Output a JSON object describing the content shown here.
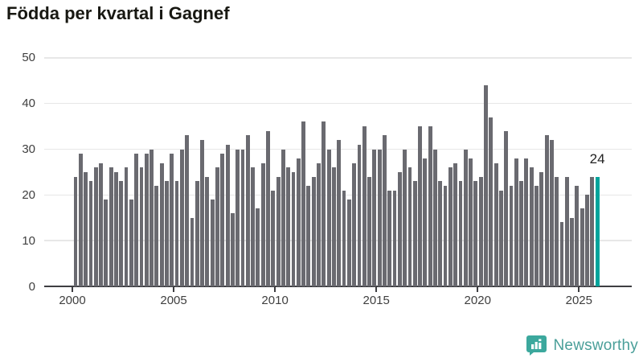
{
  "title": "Födda per kvartal i Gagnef",
  "chart_data": {
    "type": "bar",
    "title": "Födda per kvartal i Gagnef",
    "xlabel": "",
    "ylabel": "",
    "ylim": [
      0,
      50
    ],
    "y_ticks": [
      0,
      10,
      20,
      30,
      40,
      50
    ],
    "x_tick_labels": [
      "2000",
      "2005",
      "2010",
      "2015",
      "2020",
      "2025"
    ],
    "grid": "horizontal",
    "legend": "none",
    "bar_color": "#6a6a70",
    "highlight_color": "#00a49c",
    "highlight_quarter": "2025-Q4",
    "annotation": {
      "text": "24"
    },
    "series": [
      {
        "year": "2000",
        "values": [
          24,
          29,
          25,
          23
        ]
      },
      {
        "year": "2001",
        "values": [
          26,
          27,
          19,
          26
        ]
      },
      {
        "year": "2002",
        "values": [
          25,
          23,
          26,
          19
        ]
      },
      {
        "year": "2003",
        "values": [
          29,
          26,
          29,
          30
        ]
      },
      {
        "year": "2004",
        "values": [
          22,
          27,
          23,
          29
        ]
      },
      {
        "year": "2005",
        "values": [
          23,
          30,
          33,
          15
        ]
      },
      {
        "year": "2006",
        "values": [
          23,
          32,
          24,
          19
        ]
      },
      {
        "year": "2007",
        "values": [
          26,
          29,
          31,
          16
        ]
      },
      {
        "year": "2008",
        "values": [
          30,
          30,
          33,
          26
        ]
      },
      {
        "year": "2009",
        "values": [
          17,
          27,
          34,
          21
        ]
      },
      {
        "year": "2010",
        "values": [
          24,
          30,
          26,
          25
        ]
      },
      {
        "year": "2011",
        "values": [
          28,
          36,
          22,
          24
        ]
      },
      {
        "year": "2012",
        "values": [
          27,
          36,
          30,
          26
        ]
      },
      {
        "year": "2013",
        "values": [
          32,
          21,
          19,
          27
        ]
      },
      {
        "year": "2014",
        "values": [
          31,
          35,
          24,
          30
        ]
      },
      {
        "year": "2015",
        "values": [
          30,
          33,
          21,
          21
        ]
      },
      {
        "year": "2016",
        "values": [
          25,
          30,
          26,
          23
        ]
      },
      {
        "year": "2017",
        "values": [
          35,
          28,
          35,
          30
        ]
      },
      {
        "year": "2018",
        "values": [
          23,
          22,
          26,
          27
        ]
      },
      {
        "year": "2019",
        "values": [
          23,
          30,
          28,
          23
        ]
      },
      {
        "year": "2020",
        "values": [
          24,
          44,
          37,
          27
        ]
      },
      {
        "year": "2021",
        "values": [
          21,
          34,
          22,
          28
        ]
      },
      {
        "year": "2022",
        "values": [
          23,
          28,
          26,
          22
        ]
      },
      {
        "year": "2023",
        "values": [
          25,
          33,
          32,
          24
        ]
      },
      {
        "year": "2024",
        "values": [
          14,
          24,
          15,
          22
        ]
      },
      {
        "year": "2025",
        "values": [
          17,
          20,
          24,
          24
        ]
      }
    ]
  },
  "branding": {
    "logo_text": "Newsworthy",
    "icon_color": "#3ca89d",
    "text_color": "#4a9f99"
  }
}
